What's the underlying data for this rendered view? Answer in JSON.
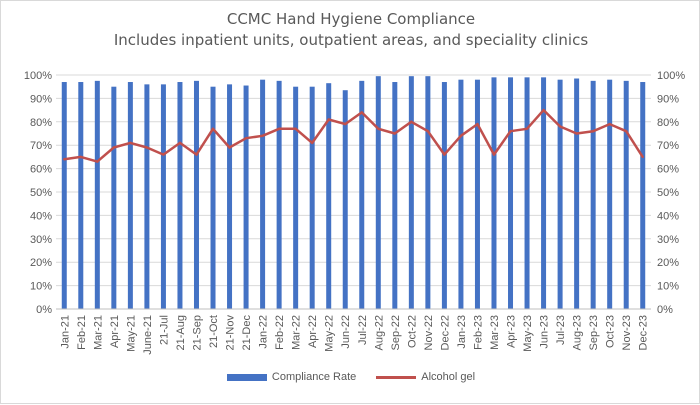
{
  "chart_data": {
    "type": "bar",
    "title": "CCMC Hand Hygiene Compliance",
    "subtitle": "Includes inpatient units, outpatient areas, and speciality clinics",
    "categories": [
      "Jan-21",
      "Feb-21",
      "Mar-21",
      "Apr-21",
      "May-21",
      "June-21",
      "21-Jul",
      "21-Aug",
      "21-Sep",
      "21-Oct",
      "21-Nov",
      "21-Dec",
      "Jan-22",
      "Feb-22",
      "Mar-22",
      "Apr-22",
      "May-22",
      "Jun-22",
      "Jul-22",
      "Aug-22",
      "Sep-22",
      "Oct-22",
      "Nov-22",
      "Dec-22",
      "Jan-23",
      "Feb-23",
      "Mar-23",
      "Apr-23",
      "May-23",
      "Jun-23",
      "Jul-23",
      "Aug-23",
      "Sep-23",
      "Oct-23",
      "Nov-23",
      "Dec-23"
    ],
    "series": [
      {
        "name": "Compliance Rate",
        "type": "bar",
        "color": "#4472c4",
        "axis": "left",
        "values": [
          97,
          97,
          97.5,
          95,
          97,
          96,
          96,
          97,
          97.5,
          95,
          96,
          95.5,
          98,
          97.5,
          95,
          95,
          96.5,
          93.5,
          97.5,
          99.5,
          97,
          99.5,
          99.5,
          97,
          98,
          98,
          99,
          99,
          99,
          99,
          98,
          98.5,
          97.5,
          98,
          97.5,
          97
        ]
      },
      {
        "name": "Alcohol gel",
        "type": "line",
        "color": "#c0504d",
        "axis": "right",
        "values": [
          64,
          65,
          63,
          69,
          71,
          69,
          66,
          71,
          66,
          77,
          69,
          73,
          74,
          77,
          77,
          71,
          81,
          79,
          84,
          77,
          75,
          80,
          76,
          66,
          74,
          79,
          66,
          76,
          77,
          85,
          78,
          75,
          76,
          79,
          76,
          65
        ]
      }
    ],
    "y_left": {
      "ylim": [
        0,
        100
      ],
      "ticks": [
        "0%",
        "10%",
        "20%",
        "30%",
        "40%",
        "50%",
        "60%",
        "70%",
        "80%",
        "90%",
        "100%"
      ]
    },
    "y_right": {
      "ylim": [
        0,
        100
      ],
      "ticks": [
        "0%",
        "10%",
        "20%",
        "30%",
        "40%",
        "50%",
        "60%",
        "70%",
        "80%",
        "90%",
        "100%"
      ]
    },
    "grid": true,
    "legend_position": "bottom"
  }
}
